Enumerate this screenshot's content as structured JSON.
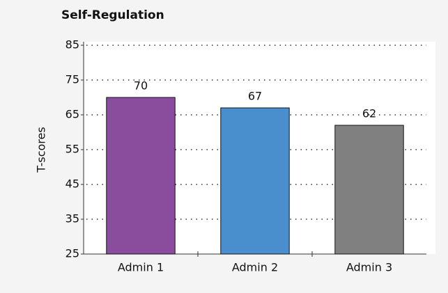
{
  "chart_data": {
    "type": "bar",
    "title": "Self-Regulation",
    "y_label": "T-scores",
    "categories": [
      "Admin 1",
      "Admin 2",
      "Admin 3"
    ],
    "values": [
      70,
      67,
      62
    ],
    "colors": [
      "#8a4d9e",
      "#4a8fcd",
      "#808080"
    ],
    "ylim": [
      25,
      85
    ],
    "yticks": [
      25,
      35,
      45,
      55,
      65,
      75,
      85
    ],
    "grid": true
  }
}
